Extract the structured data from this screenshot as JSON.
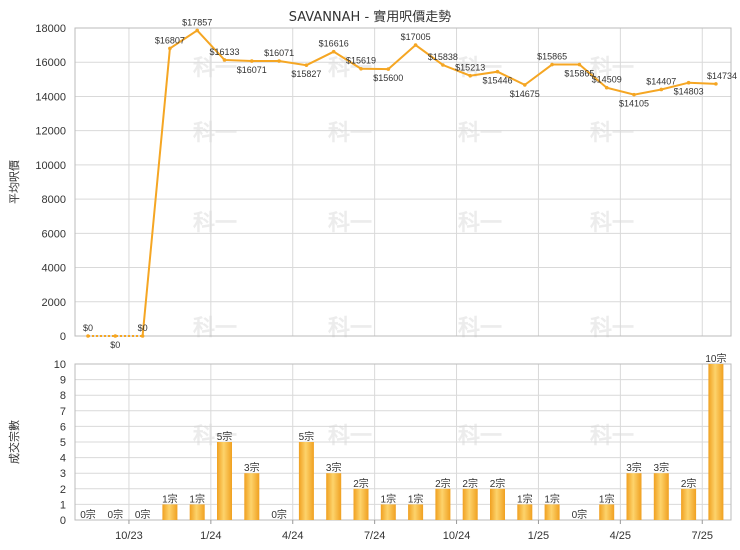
{
  "colors": {
    "line": "#f5a623",
    "bar_light": "#fdd36b",
    "bar_dark": "#f0a020"
  },
  "watermark_text": "科一",
  "chart_data": [
    {
      "type": "line",
      "title": "SAVANNAH - 實用呎價走勢",
      "ylabel": "平均呎價",
      "ylim": [
        0,
        18000
      ],
      "yticks": [
        0,
        2000,
        4000,
        6000,
        8000,
        10000,
        12000,
        14000,
        16000,
        18000
      ],
      "grid": true,
      "series": [
        {
          "values": [
            0,
            0,
            0,
            16807,
            17857,
            16133,
            16071,
            16071,
            15827,
            16616,
            15619,
            15600,
            17005,
            15838,
            15213,
            15446,
            14675,
            15865,
            15865,
            14509,
            14105,
            14407,
            14803,
            14734
          ],
          "labels": [
            "$0",
            "$0",
            "$0",
            "$16807",
            "$17857",
            "$16133",
            "$16071",
            "$16071",
            "$15827",
            "$16616",
            "$15619",
            "$15600",
            "$17005",
            "$15838",
            "$15213",
            "$15446",
            "$14675",
            "$15865",
            "$15865",
            "$14509",
            "$14105",
            "$14407",
            "$14803",
            "$14734"
          ]
        }
      ]
    },
    {
      "type": "bar",
      "ylabel": "成交宗數",
      "ylim": [
        0,
        10
      ],
      "yticks": [
        0,
        1,
        2,
        3,
        4,
        5,
        6,
        7,
        8,
        9,
        10
      ],
      "grid": true,
      "x_tick_labels": [
        "10/23",
        "1/24",
        "4/24",
        "7/24",
        "10/24",
        "1/25",
        "4/25",
        "7/25"
      ],
      "x_tick_positions": [
        2,
        5,
        8,
        11,
        14,
        17,
        20,
        23
      ],
      "values": [
        0,
        0,
        0,
        1,
        1,
        5,
        3,
        0,
        5,
        3,
        2,
        1,
        1,
        2,
        2,
        2,
        1,
        1,
        0,
        1,
        3,
        3,
        2,
        10
      ],
      "labels": [
        "0宗",
        "0宗",
        "0宗",
        "1宗",
        "1宗",
        "5宗",
        "3宗",
        "0宗",
        "5宗",
        "3宗",
        "2宗",
        "1宗",
        "1宗",
        "2宗",
        "2宗",
        "2宗",
        "1宗",
        "1宗",
        "0宗",
        "1宗",
        "3宗",
        "3宗",
        "2宗",
        "10宗"
      ]
    }
  ]
}
